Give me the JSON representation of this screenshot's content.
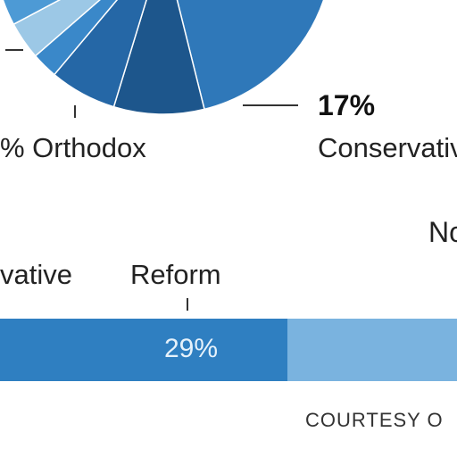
{
  "chart_data": [
    {
      "type": "pie",
      "slices": [
        {
          "label": "Conservative",
          "value_label": "17%",
          "value": 17,
          "color": "#2f78b9"
        },
        {
          "label": "Orthodox",
          "value_label": "% Orthodox",
          "color": "#1d568c"
        },
        {
          "color": "#2567a6"
        },
        {
          "color": "#3a88c9"
        },
        {
          "color": "#9cc8e6"
        },
        {
          "color": "#4d9ad5"
        }
      ]
    },
    {
      "type": "bar",
      "orientation": "horizontal-stacked",
      "segments": [
        {
          "label": "vative",
          "color": "#2f7fc1"
        },
        {
          "label": "Reform",
          "value_label": "29%",
          "value": 29,
          "color": "#2f7fc1"
        },
        {
          "label": "No",
          "color": "#7ab3df"
        }
      ]
    }
  ],
  "labels": {
    "orthodox": "% Orthodox",
    "conservative_pct": "17%",
    "conservative_name": "Conservativ",
    "no": "No",
    "vative": "vative",
    "reform": "Reform",
    "reform_pct": "29%",
    "courtesy": "COURTESY O"
  }
}
